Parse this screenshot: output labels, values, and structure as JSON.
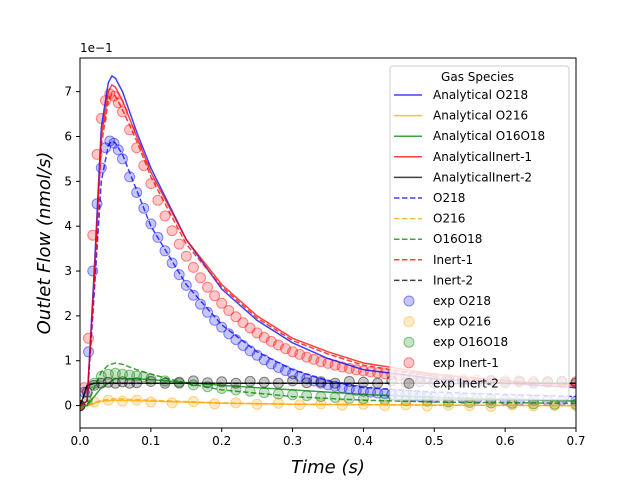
{
  "chart_data": {
    "type": "line",
    "title": "",
    "xlabel": "Time (s)",
    "ylabel": "Outlet Flow (nmol/s)",
    "xlim": [
      0,
      0.7
    ],
    "ylim": [
      -0.05,
      0.775
    ],
    "y_offset_label": "1e−1",
    "xticks": [
      0.0,
      0.1,
      0.2,
      0.3,
      0.4,
      0.5,
      0.6,
      0.7
    ],
    "xtick_labels": [
      "0.0",
      "0.1",
      "0.2",
      "0.3",
      "0.4",
      "0.5",
      "0.6",
      "0.7"
    ],
    "yticks": [
      0,
      0.1,
      0.2,
      0.3,
      0.4,
      0.5,
      0.6,
      0.7
    ],
    "ytick_labels": [
      "0",
      "1",
      "2",
      "3",
      "4",
      "5",
      "6",
      "7"
    ],
    "grid": false,
    "legend": {
      "title": "Gas Species",
      "placement": "top-right",
      "entries": [
        {
          "label": "Analytical O218",
          "style": "solid",
          "color": "#0000ff"
        },
        {
          "label": "Analytical O216",
          "style": "solid",
          "color": "#ffa500"
        },
        {
          "label": "Analytical O16O18",
          "style": "solid",
          "color": "#008000"
        },
        {
          "label": "AnalyticalInert-1",
          "style": "solid",
          "color": "#ff0000"
        },
        {
          "label": "AnalyticalInert-2",
          "style": "solid",
          "color": "#000000"
        },
        {
          "label": "O218",
          "style": "dashed",
          "color": "#0000ff"
        },
        {
          "label": "O216",
          "style": "dashed",
          "color": "#ffa500"
        },
        {
          "label": "O16O18",
          "style": "dashed",
          "color": "#008000"
        },
        {
          "label": "Inert-1",
          "style": "dashed",
          "color": "#ff0000"
        },
        {
          "label": "Inert-2",
          "style": "dashed",
          "color": "#000000"
        },
        {
          "label": "exp O218",
          "style": "marker",
          "color": "#0000ff"
        },
        {
          "label": "exp O216",
          "style": "marker",
          "color": "#ffa500"
        },
        {
          "label": "exp O16O18",
          "style": "marker",
          "color": "#008000"
        },
        {
          "label": "exp Inert-1",
          "style": "marker",
          "color": "#ff0000"
        },
        {
          "label": "exp Inert-2",
          "style": "marker",
          "color": "#000000"
        }
      ]
    },
    "series": [
      {
        "name": "Analytical O218",
        "kind": "line",
        "dash": false,
        "color": "#0000ff",
        "x": [
          0.0,
          0.01,
          0.02,
          0.03,
          0.04,
          0.045,
          0.05,
          0.06,
          0.08,
          0.1,
          0.15,
          0.2,
          0.25,
          0.3,
          0.35,
          0.4,
          0.5,
          0.6,
          0.7
        ],
        "y": [
          0.0,
          0.01,
          0.3,
          0.62,
          0.72,
          0.735,
          0.73,
          0.7,
          0.61,
          0.53,
          0.37,
          0.26,
          0.19,
          0.14,
          0.105,
          0.08,
          0.06,
          0.05,
          0.04
        ]
      },
      {
        "name": "Analytical O216",
        "kind": "line",
        "dash": false,
        "color": "#ffa500",
        "x": [
          0.0,
          0.01,
          0.03,
          0.05,
          0.1,
          0.2,
          0.3,
          0.5,
          0.7
        ],
        "y": [
          0.0,
          0.0,
          0.01,
          0.012,
          0.01,
          0.005,
          0.003,
          0.001,
          0.0
        ]
      },
      {
        "name": "Analytical O16O18",
        "kind": "line",
        "dash": false,
        "color": "#008000",
        "x": [
          0.0,
          0.01,
          0.03,
          0.05,
          0.08,
          0.1,
          0.2,
          0.3,
          0.4,
          0.5,
          0.7
        ],
        "y": [
          0.0,
          0.0,
          0.04,
          0.06,
          0.06,
          0.058,
          0.045,
          0.035,
          0.025,
          0.018,
          0.01
        ]
      },
      {
        "name": "AnalyticalInert-1",
        "kind": "line",
        "dash": false,
        "color": "#ff0000",
        "x": [
          0.0,
          0.01,
          0.02,
          0.03,
          0.04,
          0.045,
          0.05,
          0.06,
          0.08,
          0.1,
          0.15,
          0.2,
          0.25,
          0.3,
          0.35,
          0.4,
          0.5,
          0.6,
          0.7
        ],
        "y": [
          0.0,
          0.01,
          0.28,
          0.6,
          0.7,
          0.715,
          0.71,
          0.68,
          0.6,
          0.52,
          0.37,
          0.27,
          0.2,
          0.15,
          0.12,
          0.095,
          0.07,
          0.055,
          0.045
        ]
      },
      {
        "name": "AnalyticalInert-2",
        "kind": "line",
        "dash": false,
        "color": "#000000",
        "x": [
          0.0,
          0.005,
          0.01,
          0.02,
          0.03,
          0.1,
          0.3,
          0.5,
          0.7
        ],
        "y": [
          0.0,
          0.02,
          0.045,
          0.05,
          0.05,
          0.05,
          0.05,
          0.05,
          0.05
        ]
      },
      {
        "name": "O218",
        "kind": "line",
        "dash": true,
        "color": "#0000ff",
        "x": [
          0.0,
          0.01,
          0.02,
          0.03,
          0.04,
          0.045,
          0.05,
          0.06,
          0.08,
          0.1,
          0.15,
          0.2,
          0.25,
          0.3,
          0.35,
          0.4,
          0.5,
          0.6,
          0.7
        ],
        "y": [
          0.0,
          0.01,
          0.25,
          0.5,
          0.58,
          0.59,
          0.585,
          0.56,
          0.48,
          0.4,
          0.27,
          0.18,
          0.12,
          0.08,
          0.055,
          0.04,
          0.03,
          0.025,
          0.02
        ]
      },
      {
        "name": "O216",
        "kind": "line",
        "dash": true,
        "color": "#ffa500",
        "x": [
          0.0,
          0.01,
          0.03,
          0.05,
          0.1,
          0.2,
          0.3,
          0.5,
          0.7
        ],
        "y": [
          0.0,
          0.0,
          0.012,
          0.015,
          0.012,
          0.006,
          0.003,
          0.001,
          0.0
        ]
      },
      {
        "name": "O16O18",
        "kind": "line",
        "dash": true,
        "color": "#008000",
        "x": [
          0.0,
          0.01,
          0.02,
          0.03,
          0.04,
          0.05,
          0.06,
          0.08,
          0.1,
          0.15,
          0.2,
          0.3,
          0.4,
          0.5,
          0.7
        ],
        "y": [
          0.0,
          0.0,
          0.04,
          0.075,
          0.09,
          0.095,
          0.092,
          0.08,
          0.07,
          0.05,
          0.035,
          0.02,
          0.012,
          0.008,
          0.005
        ]
      },
      {
        "name": "Inert-1",
        "kind": "line",
        "dash": true,
        "color": "#ff0000",
        "x": [
          0.0,
          0.01,
          0.02,
          0.03,
          0.04,
          0.045,
          0.05,
          0.06,
          0.08,
          0.1,
          0.15,
          0.2,
          0.25,
          0.3,
          0.35,
          0.4,
          0.5,
          0.6,
          0.7
        ],
        "y": [
          0.0,
          0.01,
          0.27,
          0.58,
          0.68,
          0.695,
          0.69,
          0.66,
          0.59,
          0.51,
          0.36,
          0.265,
          0.195,
          0.145,
          0.115,
          0.09,
          0.065,
          0.05,
          0.04
        ]
      },
      {
        "name": "Inert-2",
        "kind": "line",
        "dash": true,
        "color": "#000000",
        "x": [
          0.0,
          0.005,
          0.01,
          0.02,
          0.1,
          0.3,
          0.5,
          0.7
        ],
        "y": [
          0.0,
          0.02,
          0.045,
          0.05,
          0.05,
          0.05,
          0.05,
          0.05
        ]
      },
      {
        "name": "exp O218",
        "kind": "scatter",
        "color": "#0000ff",
        "x": [
          0.0,
          0.006,
          0.012,
          0.018,
          0.024,
          0.03,
          0.036,
          0.042,
          0.048,
          0.054,
          0.06,
          0.07,
          0.08,
          0.09,
          0.1,
          0.11,
          0.12,
          0.13,
          0.14,
          0.15,
          0.16,
          0.17,
          0.18,
          0.19,
          0.2,
          0.21,
          0.22,
          0.23,
          0.24,
          0.25,
          0.26,
          0.27,
          0.28,
          0.29,
          0.3,
          0.31,
          0.32,
          0.33,
          0.34,
          0.35,
          0.36,
          0.37,
          0.38,
          0.39,
          0.4,
          0.41,
          0.42,
          0.43,
          0.44,
          0.45,
          0.46,
          0.47,
          0.48,
          0.49,
          0.5,
          0.52,
          0.54,
          0.56,
          0.58,
          0.6,
          0.62,
          0.64,
          0.66,
          0.68,
          0.7
        ],
        "y": [
          0.0,
          0.03,
          0.12,
          0.3,
          0.45,
          0.53,
          0.575,
          0.59,
          0.585,
          0.57,
          0.55,
          0.51,
          0.475,
          0.44,
          0.405,
          0.375,
          0.345,
          0.318,
          0.292,
          0.268,
          0.246,
          0.226,
          0.208,
          0.19,
          0.175,
          0.16,
          0.147,
          0.134,
          0.122,
          0.112,
          0.102,
          0.093,
          0.085,
          0.078,
          0.071,
          0.065,
          0.06,
          0.055,
          0.05,
          0.046,
          0.043,
          0.04,
          0.037,
          0.034,
          0.032,
          0.03,
          0.028,
          0.027,
          0.025,
          0.024,
          0.022,
          0.021,
          0.02,
          0.019,
          0.018,
          0.017,
          0.016,
          0.015,
          0.014,
          0.013,
          0.012,
          0.012,
          0.011,
          0.011,
          0.01
        ]
      },
      {
        "name": "exp O216",
        "kind": "scatter",
        "color": "#ffa500",
        "x": [
          0.0,
          0.02,
          0.04,
          0.06,
          0.08,
          0.1,
          0.13,
          0.16,
          0.19,
          0.22,
          0.25,
          0.28,
          0.31,
          0.34,
          0.37,
          0.4,
          0.43,
          0.46,
          0.49,
          0.52,
          0.55,
          0.58,
          0.61,
          0.64,
          0.67,
          0.7
        ],
        "y": [
          0.0,
          0.008,
          0.012,
          0.01,
          0.012,
          0.008,
          0.006,
          0.009,
          0.004,
          0.006,
          0.003,
          0.005,
          0.002,
          0.004,
          0.001,
          0.003,
          0.0,
          0.002,
          -0.001,
          0.001,
          0.0,
          -0.002,
          0.001,
          -0.001,
          0.0,
          -0.001
        ]
      },
      {
        "name": "exp O16O18",
        "kind": "scatter",
        "color": "#008000",
        "x": [
          0.0,
          0.01,
          0.02,
          0.03,
          0.04,
          0.05,
          0.06,
          0.07,
          0.08,
          0.09,
          0.1,
          0.12,
          0.14,
          0.16,
          0.18,
          0.2,
          0.22,
          0.24,
          0.26,
          0.28,
          0.3,
          0.32,
          0.34,
          0.36,
          0.38,
          0.4,
          0.43,
          0.46,
          0.49,
          0.52,
          0.55,
          0.58,
          0.61,
          0.64,
          0.67,
          0.7
        ],
        "y": [
          0.0,
          0.01,
          0.05,
          0.065,
          0.07,
          0.072,
          0.07,
          0.068,
          0.066,
          0.064,
          0.06,
          0.055,
          0.05,
          0.046,
          0.042,
          0.038,
          0.035,
          0.032,
          0.029,
          0.026,
          0.024,
          0.022,
          0.02,
          0.018,
          0.016,
          0.015,
          0.013,
          0.011,
          0.01,
          0.008,
          0.007,
          0.006,
          0.005,
          0.004,
          0.003,
          0.003
        ]
      },
      {
        "name": "exp Inert-1",
        "kind": "scatter",
        "color": "#ff0000",
        "x": [
          0.0,
          0.006,
          0.012,
          0.018,
          0.024,
          0.03,
          0.036,
          0.042,
          0.048,
          0.054,
          0.06,
          0.07,
          0.08,
          0.09,
          0.1,
          0.11,
          0.12,
          0.13,
          0.14,
          0.15,
          0.16,
          0.17,
          0.18,
          0.19,
          0.2,
          0.21,
          0.22,
          0.23,
          0.24,
          0.25,
          0.26,
          0.27,
          0.28,
          0.29,
          0.3,
          0.31,
          0.32,
          0.33,
          0.34,
          0.35,
          0.36,
          0.37,
          0.38,
          0.39,
          0.4,
          0.41,
          0.42,
          0.43,
          0.44,
          0.45,
          0.46,
          0.47,
          0.48,
          0.49,
          0.5,
          0.52,
          0.54,
          0.56,
          0.58,
          0.6,
          0.62,
          0.64,
          0.66,
          0.68,
          0.7
        ],
        "y": [
          0.0,
          0.04,
          0.15,
          0.38,
          0.56,
          0.64,
          0.68,
          0.695,
          0.69,
          0.675,
          0.655,
          0.615,
          0.575,
          0.535,
          0.495,
          0.458,
          0.423,
          0.39,
          0.36,
          0.333,
          0.308,
          0.285,
          0.264,
          0.245,
          0.228,
          0.212,
          0.198,
          0.185,
          0.173,
          0.162,
          0.152,
          0.143,
          0.135,
          0.127,
          0.12,
          0.114,
          0.108,
          0.103,
          0.098,
          0.094,
          0.09,
          0.086,
          0.083,
          0.08,
          0.077,
          0.075,
          0.073,
          0.071,
          0.069,
          0.067,
          0.066,
          0.064,
          0.063,
          0.062,
          0.061,
          0.059,
          0.058,
          0.057,
          0.056,
          0.055,
          0.055,
          0.054,
          0.054,
          0.053,
          0.053
        ]
      },
      {
        "name": "exp Inert-2",
        "kind": "scatter",
        "color": "#000000",
        "x": [
          0.0,
          0.01,
          0.02,
          0.03,
          0.04,
          0.05,
          0.06,
          0.07,
          0.08,
          0.1,
          0.12,
          0.14,
          0.16,
          0.18,
          0.2,
          0.22,
          0.24,
          0.26,
          0.28,
          0.3,
          0.32,
          0.34,
          0.36,
          0.38,
          0.4,
          0.42,
          0.44,
          0.46,
          0.48,
          0.5,
          0.52,
          0.54,
          0.56,
          0.58,
          0.6,
          0.62,
          0.64,
          0.66,
          0.68,
          0.7
        ],
        "y": [
          0.0,
          0.03,
          0.045,
          0.05,
          0.052,
          0.05,
          0.053,
          0.05,
          0.051,
          0.054,
          0.05,
          0.052,
          0.055,
          0.051,
          0.053,
          0.05,
          0.054,
          0.052,
          0.05,
          0.055,
          0.051,
          0.053,
          0.05,
          0.054,
          0.052,
          0.05,
          0.055,
          0.051,
          0.053,
          0.05,
          0.054,
          0.052,
          0.05,
          0.055,
          0.051,
          0.053,
          0.05,
          0.052,
          0.054,
          0.05
        ]
      }
    ]
  }
}
